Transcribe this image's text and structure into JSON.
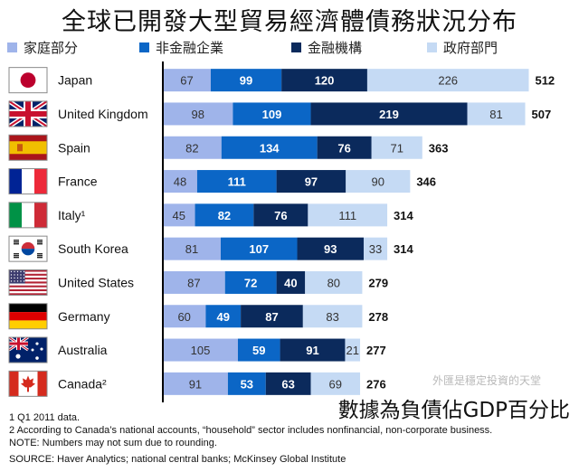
{
  "title": "全球已開發大型貿易經濟體債務狀況分布",
  "subtitle": "數據為負債佔GDP百分比",
  "watermark": "外匯是穩定投資的天堂",
  "footnotes": [
    "1  Q1 2011 data.",
    "2  According to Canada’s national accounts, “household” sector includes nonfinancial, non-corporate business.",
    "NOTE: Numbers may not sum due to rounding.",
    "SOURCE: Haver Analytics; national central banks; McKinsey Global Institute"
  ],
  "colors": {
    "household": "#9fb4ea",
    "nonfinancial": "#0b66c6",
    "financial": "#0b2a5c",
    "government": "#c5daf4"
  },
  "chart_data": {
    "type": "bar",
    "orientation": "horizontal",
    "stacked": true,
    "categories": [
      "Japan",
      "United Kingdom",
      "Spain",
      "France",
      "Italy¹",
      "South Korea",
      "United States",
      "Germany",
      "Australia",
      "Canada²"
    ],
    "flags": [
      "japan-flag-icon",
      "uk-flag-icon",
      "spain-flag-icon",
      "france-flag-icon",
      "italy-flag-icon",
      "south-korea-flag-icon",
      "us-flag-icon",
      "germany-flag-icon",
      "australia-flag-icon",
      "canada-flag-icon"
    ],
    "series": [
      {
        "name": "家庭部分",
        "color_key": "household",
        "values": [
          67,
          98,
          82,
          48,
          45,
          81,
          87,
          60,
          105,
          91
        ]
      },
      {
        "name": "非金融企業",
        "color_key": "nonfinancial",
        "values": [
          99,
          109,
          134,
          111,
          82,
          107,
          72,
          49,
          59,
          53
        ]
      },
      {
        "name": "金融機構",
        "color_key": "financial",
        "values": [
          120,
          219,
          76,
          97,
          76,
          93,
          40,
          87,
          91,
          63
        ]
      },
      {
        "name": "政府部門",
        "color_key": "government",
        "values": [
          226,
          81,
          71,
          90,
          111,
          33,
          80,
          83,
          21,
          69
        ]
      }
    ],
    "totals": [
      512,
      507,
      363,
      346,
      314,
      314,
      279,
      278,
      277,
      276
    ],
    "unit": "% of GDP"
  }
}
